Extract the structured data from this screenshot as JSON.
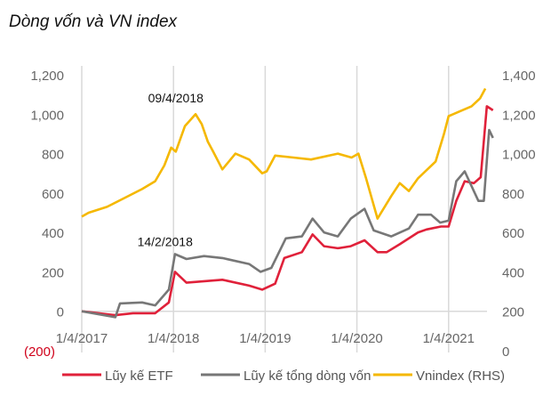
{
  "chart_data": {
    "type": "line",
    "title": "Dòng vốn và VN index",
    "xlabel": "",
    "ylabel": "",
    "x_unit": "months since 1/4/2017",
    "x_ticks": [
      "1/4/2017",
      "1/4/2018",
      "1/4/2019",
      "1/4/2020",
      "1/4/2021"
    ],
    "y_left_ticks": [
      "(200)",
      "0",
      "200",
      "400",
      "600",
      "800",
      "1,000",
      "1,200"
    ],
    "y_left_values": [
      -200,
      0,
      200,
      400,
      600,
      800,
      1000,
      1200
    ],
    "ylim_left": [
      -200,
      1200
    ],
    "y_right_ticks": [
      "0",
      "200",
      "400",
      "600",
      "800",
      "1,000",
      "1,200",
      "1,400"
    ],
    "y_right_values": [
      0,
      200,
      400,
      600,
      800,
      1000,
      1200,
      1400
    ],
    "ylim_right": [
      0,
      1400
    ],
    "xlim": [
      0,
      52
    ],
    "grid": "vertical at year ticks",
    "legend_position": "bottom",
    "annotations": [
      {
        "text": "09/4/2018",
        "x": 12.3,
        "y_right": 1260
      },
      {
        "text": "14/2/2018",
        "x": 10.9,
        "y_left": 330
      }
    ],
    "series": [
      {
        "name": "Lũy kế ETF",
        "axis": "left",
        "color": "#e0213a",
        "points": [
          [
            0,
            0
          ],
          [
            4.4,
            -20
          ],
          [
            6.7,
            -10
          ],
          [
            9.6,
            -10
          ],
          [
            11.4,
            45
          ],
          [
            12.2,
            200
          ],
          [
            13.7,
            145
          ],
          [
            18.4,
            160
          ],
          [
            21.9,
            130
          ],
          [
            23.6,
            110
          ],
          [
            25.3,
            140
          ],
          [
            26.5,
            270
          ],
          [
            28.8,
            300
          ],
          [
            30.2,
            390
          ],
          [
            31.7,
            330
          ],
          [
            33.5,
            320
          ],
          [
            35.2,
            330
          ],
          [
            37,
            360
          ],
          [
            38.7,
            300
          ],
          [
            39.9,
            300
          ],
          [
            41.6,
            340
          ],
          [
            44,
            400
          ],
          [
            45.1,
            415
          ],
          [
            47,
            430
          ],
          [
            48,
            430
          ],
          [
            49,
            560
          ],
          [
            50.1,
            660
          ],
          [
            51.3,
            650
          ],
          [
            52.2,
            680
          ],
          [
            53,
            1040
          ],
          [
            53.8,
            1020
          ]
        ]
      },
      {
        "name": "Lũy kế tổng dòng vốn",
        "axis": "left",
        "color": "#777777",
        "points": [
          [
            0,
            0
          ],
          [
            4.4,
            -30
          ],
          [
            5,
            40
          ],
          [
            7.9,
            45
          ],
          [
            9.6,
            30
          ],
          [
            11.4,
            110
          ],
          [
            12.2,
            290
          ],
          [
            13.7,
            265
          ],
          [
            16,
            280
          ],
          [
            18.4,
            270
          ],
          [
            21.9,
            240
          ],
          [
            23.4,
            200
          ],
          [
            24.8,
            220
          ],
          [
            26.7,
            370
          ],
          [
            28.8,
            380
          ],
          [
            30.2,
            470
          ],
          [
            31.7,
            400
          ],
          [
            33.5,
            380
          ],
          [
            35.2,
            470
          ],
          [
            37,
            520
          ],
          [
            38.2,
            410
          ],
          [
            40.5,
            380
          ],
          [
            42.8,
            420
          ],
          [
            44,
            490
          ],
          [
            45.7,
            490
          ],
          [
            46.9,
            450
          ],
          [
            48,
            460
          ],
          [
            49,
            660
          ],
          [
            50.1,
            710
          ],
          [
            51.9,
            560
          ],
          [
            52.6,
            560
          ],
          [
            53.3,
            920
          ],
          [
            53.8,
            880
          ]
        ]
      },
      {
        "name": "Vnindex (RHS)",
        "axis": "right",
        "color": "#f5b800",
        "points": [
          [
            0,
            680
          ],
          [
            0.9,
            700
          ],
          [
            3.3,
            730
          ],
          [
            5.6,
            775
          ],
          [
            7.9,
            820
          ],
          [
            9.6,
            860
          ],
          [
            10.8,
            940
          ],
          [
            11.7,
            1030
          ],
          [
            12.3,
            1010
          ],
          [
            13.5,
            1140
          ],
          [
            14.9,
            1200
          ],
          [
            15.7,
            1150
          ],
          [
            16.5,
            1060
          ],
          [
            17.2,
            1010
          ],
          [
            18.4,
            920
          ],
          [
            20.1,
            1000
          ],
          [
            21.9,
            970
          ],
          [
            23.6,
            900
          ],
          [
            24.2,
            910
          ],
          [
            25.3,
            990
          ],
          [
            27.7,
            980
          ],
          [
            30,
            970
          ],
          [
            33.5,
            1000
          ],
          [
            35.3,
            980
          ],
          [
            36.2,
            1000
          ],
          [
            37.2,
            875
          ],
          [
            38.7,
            670
          ],
          [
            40.5,
            785
          ],
          [
            41.6,
            850
          ],
          [
            42.8,
            810
          ],
          [
            44,
            875
          ],
          [
            46.3,
            960
          ],
          [
            47.4,
            1100
          ],
          [
            48,
            1190
          ],
          [
            49.2,
            1210
          ],
          [
            51,
            1240
          ],
          [
            52.1,
            1280
          ],
          [
            52.8,
            1330
          ]
        ]
      }
    ]
  }
}
